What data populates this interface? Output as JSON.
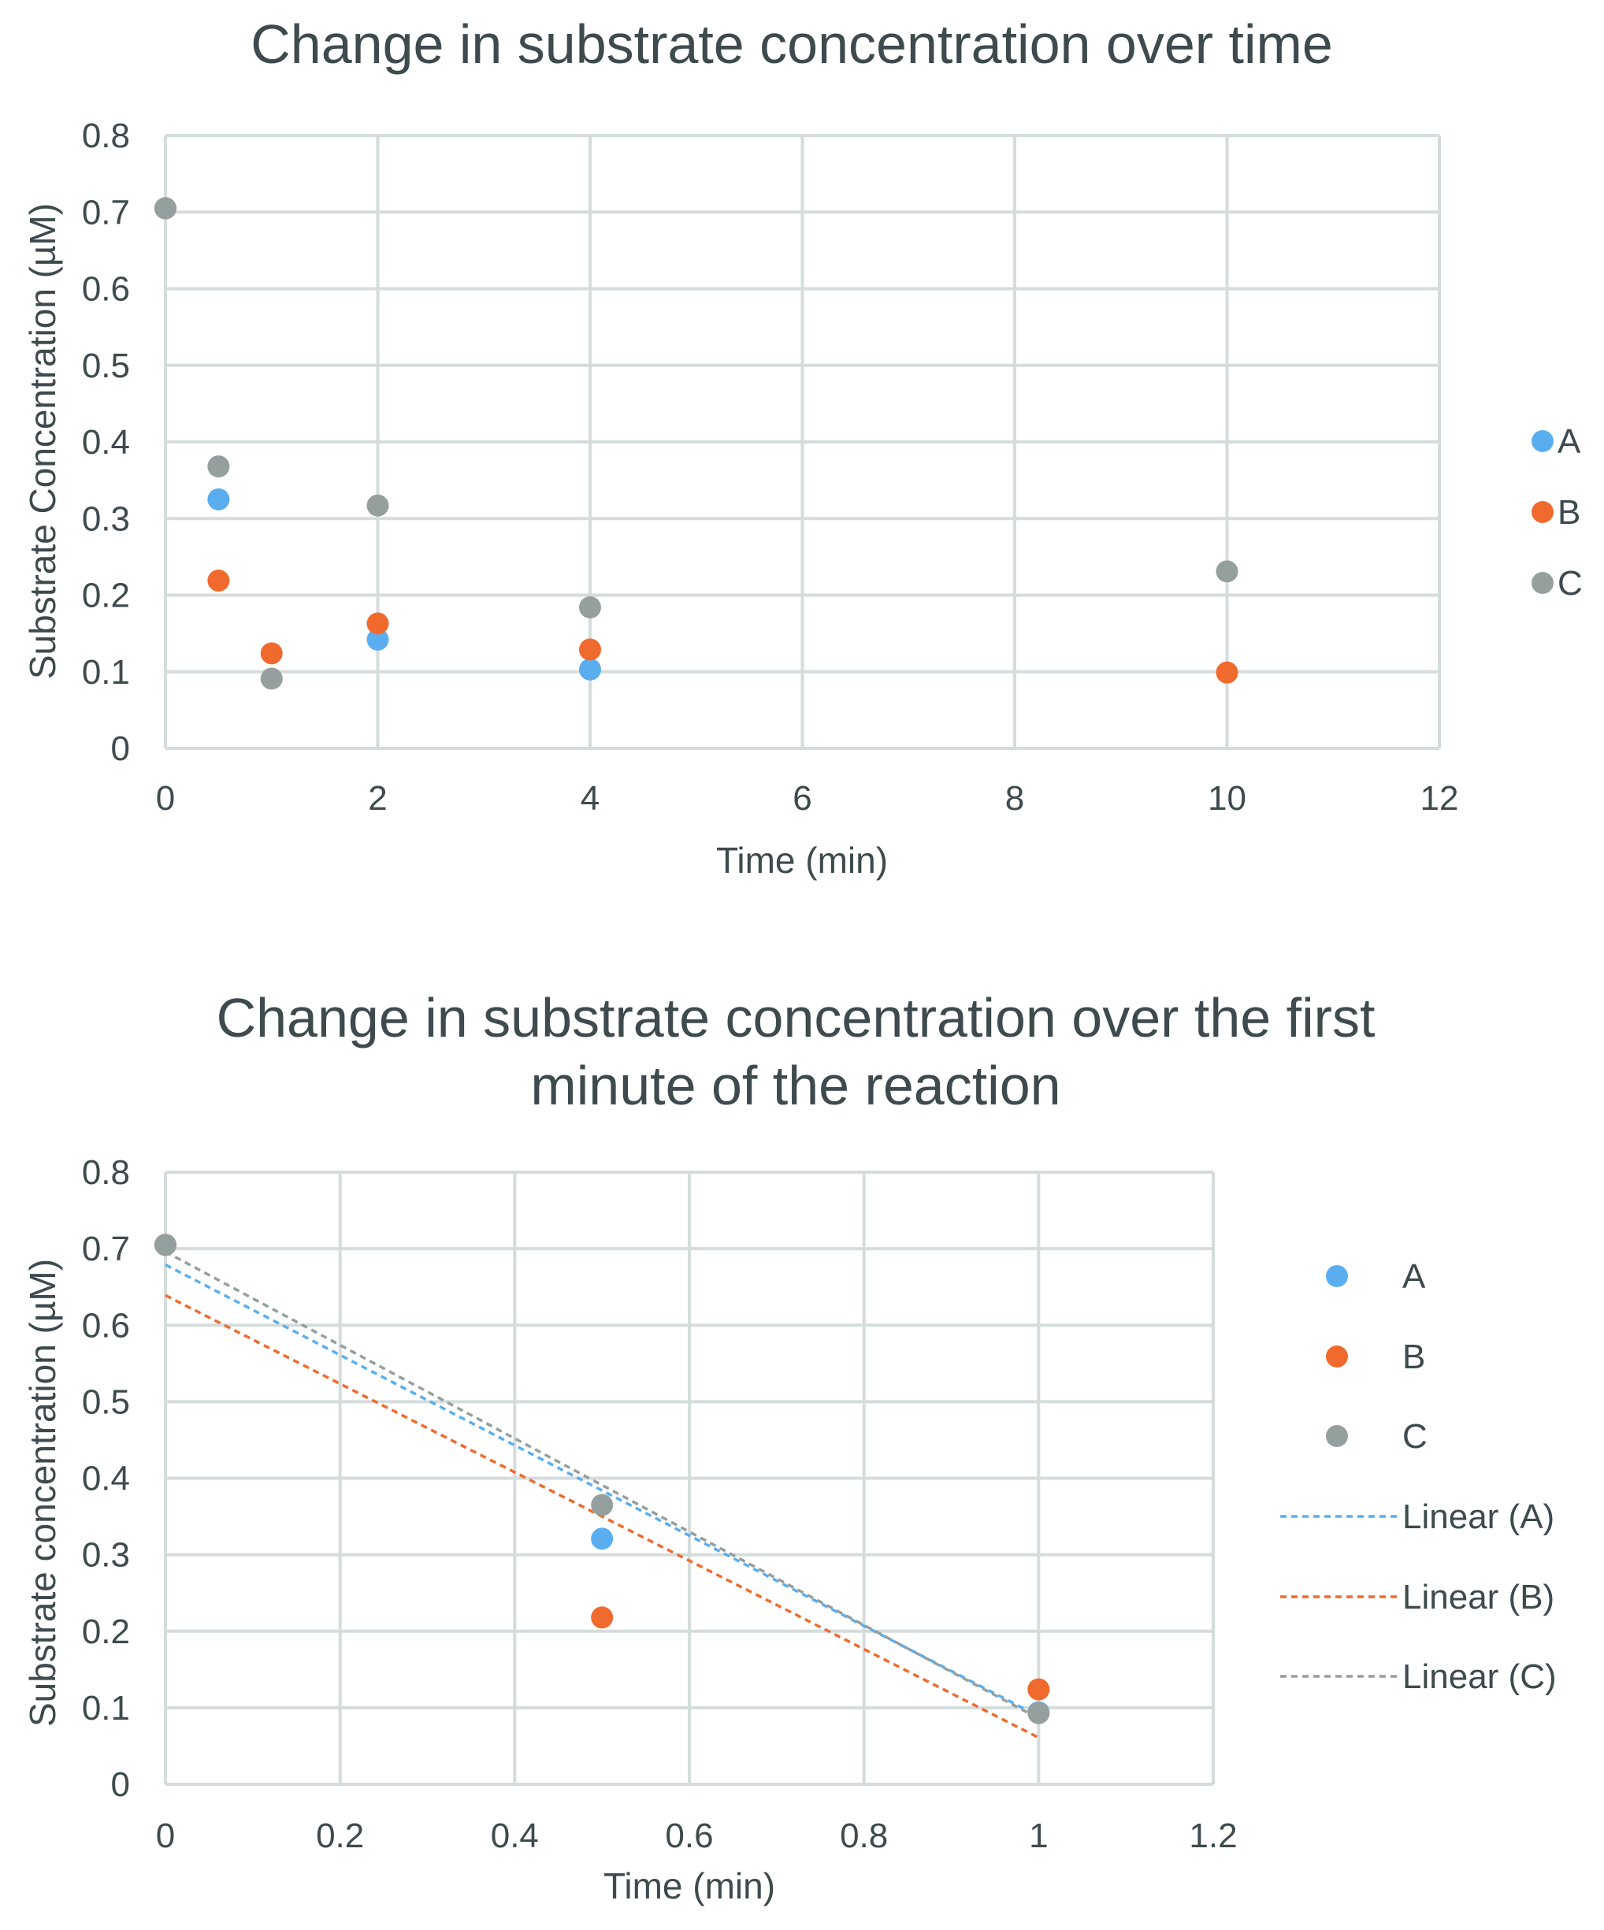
{
  "chart_data": [
    {
      "type": "scatter",
      "title": "Change in substrate concentration over time",
      "xlabel": "Time (min)",
      "ylabel": "Substrate Concentration (µM)",
      "xlim": [
        0,
        12
      ],
      "ylim": [
        0,
        0.8
      ],
      "xticks": [
        "0",
        "2",
        "4",
        "6",
        "8",
        "10",
        "12"
      ],
      "yticks": [
        "0",
        "0.1",
        "0.2",
        "0.3",
        "0.4",
        "0.5",
        "0.6",
        "0.7",
        "0.8"
      ],
      "grid": true,
      "legend_position": "right",
      "series": [
        {
          "name": "A",
          "color": "#5aaef0",
          "points": [
            [
              0,
              0.705
            ],
            [
              0.5,
              0.325
            ],
            [
              2,
              0.142
            ],
            [
              4,
              0.103
            ]
          ]
        },
        {
          "name": "B",
          "color": "#f06a2e",
          "points": [
            [
              0,
              0.705
            ],
            [
              0.5,
              0.219
            ],
            [
              1,
              0.124
            ],
            [
              2,
              0.163
            ],
            [
              4,
              0.129
            ],
            [
              10,
              0.099
            ]
          ]
        },
        {
          "name": "C",
          "color": "#959f9e",
          "points": [
            [
              0,
              0.705
            ],
            [
              0.5,
              0.368
            ],
            [
              1,
              0.091
            ],
            [
              2,
              0.317
            ],
            [
              4,
              0.184
            ],
            [
              10,
              0.231
            ]
          ]
        }
      ]
    },
    {
      "type": "scatter",
      "title": "Change in substrate concentration over the first minute of the reaction",
      "title_lines": [
        "Change in substrate concentration over the first",
        "minute of the reaction"
      ],
      "xlabel": "Time (min)",
      "ylabel": "Substrate concentration (µM)",
      "xlim": [
        0,
        1.2
      ],
      "ylim": [
        0,
        0.8
      ],
      "xticks": [
        "0",
        "0.2",
        "0.4",
        "0.6",
        "0.8",
        "1",
        "1.2"
      ],
      "yticks": [
        "0",
        "0.1",
        "0.2",
        "0.3",
        "0.4",
        "0.5",
        "0.6",
        "0.7",
        "0.8"
      ],
      "grid": true,
      "legend_position": "right",
      "series": [
        {
          "name": "A",
          "color": "#5aaef0",
          "points": [
            [
              0,
              0.705
            ],
            [
              0.5,
              0.321
            ],
            [
              1,
              0.094
            ]
          ]
        },
        {
          "name": "B",
          "color": "#f06a2e",
          "points": [
            [
              0,
              0.705
            ],
            [
              0.5,
              0.218
            ],
            [
              1,
              0.124
            ]
          ]
        },
        {
          "name": "C",
          "color": "#959f9e",
          "points": [
            [
              0,
              0.705
            ],
            [
              0.5,
              0.365
            ],
            [
              1,
              0.093
            ]
          ]
        }
      ],
      "trendlines": [
        {
          "name": "Linear (A)",
          "color": "#5aaef0",
          "from": [
            0,
            0.679
          ],
          "to": [
            1,
            0.089
          ]
        },
        {
          "name": "Linear (B)",
          "color": "#f06a2e",
          "from": [
            0,
            0.639
          ],
          "to": [
            1,
            0.061
          ]
        },
        {
          "name": "Linear (C)",
          "color": "#959f9e",
          "from": [
            0,
            0.696
          ],
          "to": [
            1,
            0.086
          ]
        }
      ]
    }
  ]
}
